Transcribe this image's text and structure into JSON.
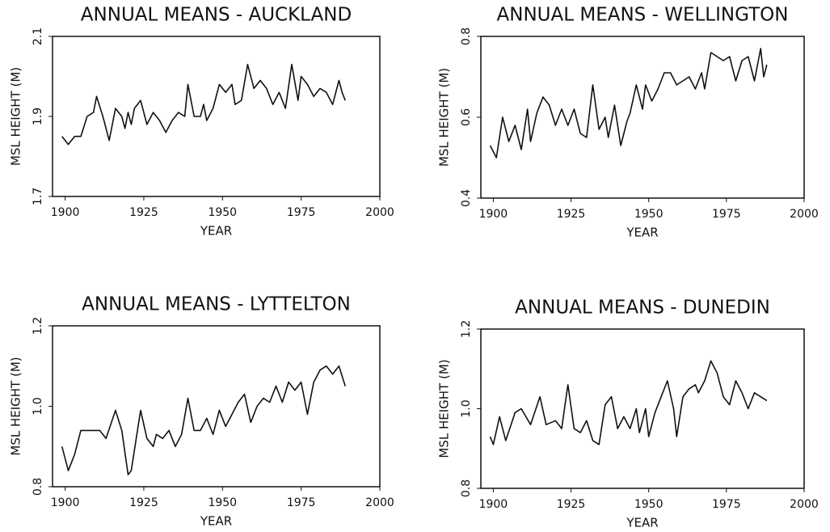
{
  "chart_data": [
    {
      "type": "line",
      "title": "ANNUAL MEANS - AUCKLAND",
      "xlabel": "YEAR",
      "ylabel": "MSL HEIGHT (M)",
      "color": "#111111",
      "x": [
        1899,
        1901,
        1903,
        1905,
        1907,
        1909,
        1910,
        1912,
        1914,
        1916,
        1918,
        1919,
        1920,
        1921,
        1922,
        1924,
        1926,
        1928,
        1930,
        1932,
        1934,
        1936,
        1938,
        1939,
        1941,
        1943,
        1944,
        1945,
        1947,
        1949,
        1951,
        1953,
        1954,
        1956,
        1958,
        1960,
        1962,
        1964,
        1966,
        1968,
        1970,
        1972,
        1974,
        1975,
        1977,
        1979,
        1981,
        1983,
        1985,
        1987,
        1988,
        1989
      ],
      "values": [
        1.85,
        1.83,
        1.85,
        1.85,
        1.9,
        1.91,
        1.95,
        1.9,
        1.84,
        1.92,
        1.9,
        1.87,
        1.91,
        1.88,
        1.92,
        1.94,
        1.88,
        1.91,
        1.89,
        1.86,
        1.89,
        1.91,
        1.9,
        1.98,
        1.9,
        1.9,
        1.93,
        1.89,
        1.92,
        1.98,
        1.96,
        1.98,
        1.93,
        1.94,
        2.03,
        1.97,
        1.99,
        1.97,
        1.93,
        1.96,
        1.92,
        2.03,
        1.94,
        2.0,
        1.98,
        1.95,
        1.97,
        1.96,
        1.93,
        1.99,
        1.96,
        1.94
      ],
      "xlim": [
        1896,
        2000
      ],
      "ylim": [
        1.7,
        2.1
      ],
      "xticks": [
        1900,
        1925,
        1950,
        1975,
        2000
      ],
      "yticks": [
        1.7,
        1.9,
        2.1
      ]
    },
    {
      "type": "line",
      "title": "ANNUAL MEANS - WELLINGTON",
      "xlabel": "YEAR",
      "ylabel": "MSL HEIGHT (M)",
      "color": "#111111",
      "x": [
        1899,
        1901,
        1903,
        1905,
        1907,
        1909,
        1911,
        1912,
        1914,
        1916,
        1918,
        1920,
        1922,
        1924,
        1926,
        1928,
        1930,
        1932,
        1934,
        1936,
        1937,
        1939,
        1941,
        1943,
        1944,
        1946,
        1948,
        1949,
        1951,
        1953,
        1955,
        1957,
        1959,
        1961,
        1963,
        1965,
        1967,
        1968,
        1970,
        1972,
        1974,
        1976,
        1978,
        1980,
        1982,
        1984,
        1986,
        1987,
        1988
      ],
      "values": [
        0.53,
        0.5,
        0.6,
        0.54,
        0.58,
        0.52,
        0.62,
        0.54,
        0.61,
        0.65,
        0.63,
        0.58,
        0.62,
        0.58,
        0.62,
        0.56,
        0.55,
        0.68,
        0.57,
        0.6,
        0.55,
        0.63,
        0.53,
        0.59,
        0.61,
        0.68,
        0.62,
        0.68,
        0.64,
        0.67,
        0.71,
        0.71,
        0.68,
        0.69,
        0.7,
        0.67,
        0.71,
        0.67,
        0.76,
        0.75,
        0.74,
        0.75,
        0.69,
        0.74,
        0.75,
        0.69,
        0.77,
        0.7,
        0.73
      ],
      "xlim": [
        1896,
        2000
      ],
      "ylim": [
        0.4,
        0.8
      ],
      "xticks": [
        1900,
        1925,
        1950,
        1975,
        2000
      ],
      "yticks": [
        0.4,
        0.6,
        0.8
      ]
    },
    {
      "type": "line",
      "title": "ANNUAL MEANS - LYTTELTON",
      "xlabel": "YEAR",
      "ylabel": "MSL HEIGHT (M)",
      "color": "#111111",
      "x": [
        1899,
        1901,
        1903,
        1905,
        1908,
        1911,
        1913,
        1916,
        1918,
        1920,
        1921,
        1923,
        1924,
        1926,
        1928,
        1929,
        1931,
        1933,
        1935,
        1937,
        1939,
        1941,
        1943,
        1945,
        1947,
        1949,
        1951,
        1953,
        1955,
        1957,
        1959,
        1961,
        1963,
        1965,
        1967,
        1969,
        1971,
        1973,
        1975,
        1977,
        1979,
        1981,
        1983,
        1985,
        1987,
        1989
      ],
      "values": [
        0.9,
        0.84,
        0.88,
        0.94,
        0.94,
        0.94,
        0.92,
        0.99,
        0.94,
        0.83,
        0.84,
        0.94,
        0.99,
        0.92,
        0.9,
        0.93,
        0.92,
        0.94,
        0.9,
        0.93,
        1.02,
        0.94,
        0.94,
        0.97,
        0.93,
        0.99,
        0.95,
        0.98,
        1.01,
        1.03,
        0.96,
        1.0,
        1.02,
        1.01,
        1.05,
        1.01,
        1.06,
        1.04,
        1.06,
        0.98,
        1.06,
        1.09,
        1.1,
        1.08,
        1.1,
        1.05
      ],
      "xlim": [
        1896,
        2000
      ],
      "ylim": [
        0.8,
        1.2
      ],
      "xticks": [
        1900,
        1925,
        1950,
        1975,
        2000
      ],
      "yticks": [
        0.8,
        {
          "value": 1,
          "label": "1.0"
        },
        1.2
      ]
    },
    {
      "type": "line",
      "title": "ANNUAL MEANS - DUNEDIN",
      "xlabel": "YEAR",
      "ylabel": "MSL HEIGHT (M)",
      "color": "#111111",
      "x": [
        1899,
        1900,
        1902,
        1904,
        1907,
        1909,
        1912,
        1915,
        1917,
        1920,
        1922,
        1924,
        1926,
        1928,
        1930,
        1932,
        1934,
        1936,
        1938,
        1940,
        1942,
        1944,
        1946,
        1947,
        1949,
        1950,
        1952,
        1954,
        1956,
        1958,
        1959,
        1961,
        1963,
        1965,
        1966,
        1968,
        1970,
        1972,
        1974,
        1976,
        1978,
        1980,
        1982,
        1984,
        1986,
        1988
      ],
      "values": [
        0.93,
        0.91,
        0.98,
        0.92,
        0.99,
        1.0,
        0.96,
        1.03,
        0.96,
        0.97,
        0.95,
        1.06,
        0.95,
        0.94,
        0.97,
        0.92,
        0.91,
        1.01,
        1.03,
        0.95,
        0.98,
        0.95,
        1.0,
        0.94,
        1.0,
        0.93,
        0.99,
        1.03,
        1.07,
        1.0,
        0.93,
        1.03,
        1.05,
        1.06,
        1.04,
        1.07,
        1.12,
        1.09,
        1.03,
        1.01,
        1.07,
        1.04,
        1.0,
        1.04,
        1.03,
        1.02
      ],
      "xlim": [
        1896,
        2000
      ],
      "ylim": [
        0.8,
        1.2
      ],
      "xticks": [
        1900,
        1925,
        1950,
        1975,
        2000
      ],
      "yticks": [
        0.8,
        {
          "value": 1,
          "label": "1.0"
        },
        1.2
      ]
    }
  ]
}
